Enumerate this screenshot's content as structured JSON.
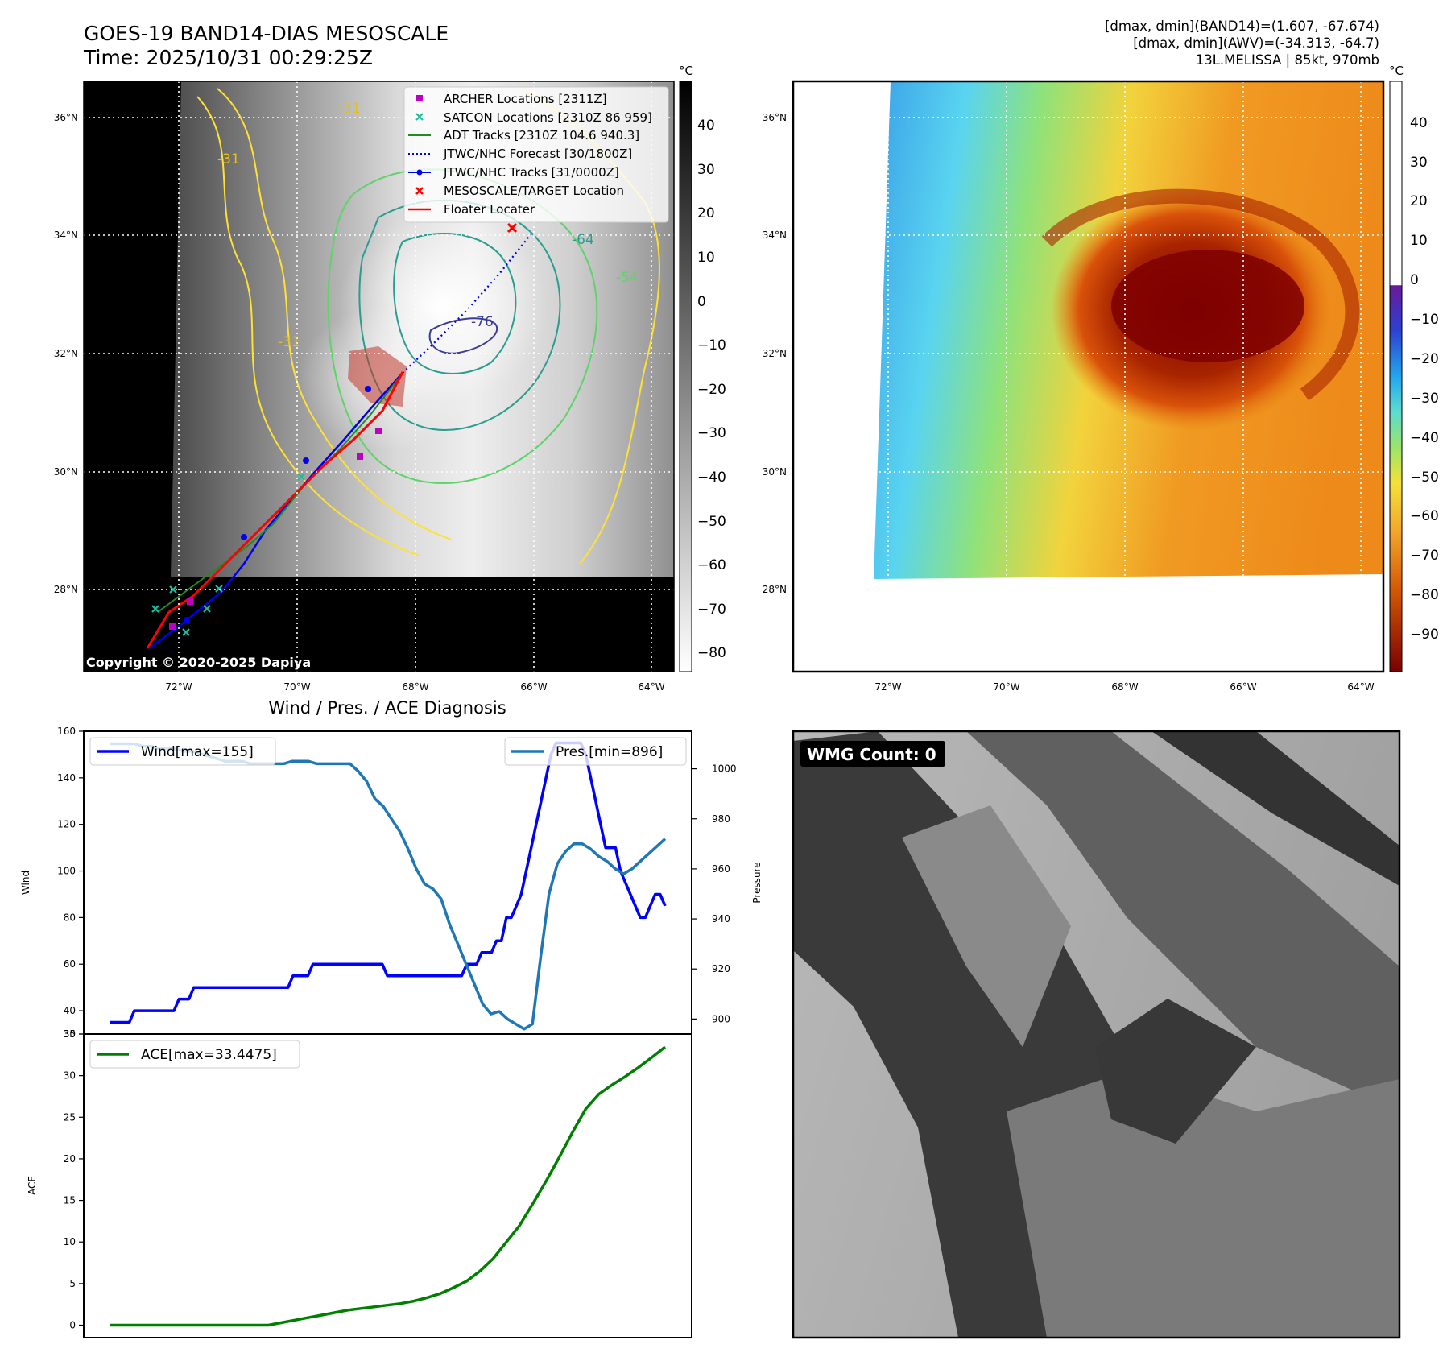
{
  "header": {
    "title_line1": "GOES-19 BAND14-DIAS MESOSCALE",
    "title_line2": "Time: 2025/10/31 00:29:25Z",
    "info_line1": "[dmax, dmin](BAND14)=(1.607, -67.674)",
    "info_line2": "[dmax, dmin](AWV)=(-34.313, -64.7)",
    "info_line3": "13L.MELISSA | 85kt, 970mb"
  },
  "map_panel": {
    "lat_labels": [
      "36°N",
      "34°N",
      "32°N",
      "30°N",
      "28°N"
    ],
    "lon_labels": [
      "72°W",
      "70°W",
      "68°W",
      "66°W",
      "64°W"
    ],
    "colorbar_unit": "°C",
    "colorbar_ticks": [
      "40",
      "30",
      "20",
      "10",
      "0",
      "−10",
      "−20",
      "−30",
      "−40",
      "−50",
      "−60",
      "−70",
      "−80"
    ],
    "copyright": "Copyright © 2020-2025 Dapiya",
    "contour_labels": [
      "-76",
      "-64",
      "-54",
      "-31",
      "-31",
      "-31"
    ],
    "legend": [
      {
        "label": "ARCHER Locations [2311Z]",
        "color": "#c000c0",
        "marker": "square"
      },
      {
        "label": "SATCON Locations [2310Z 86 959]",
        "color": "#1abc9c",
        "marker": "x"
      },
      {
        "label": "ADT Tracks [2310Z 104.6 940.3]",
        "color": "#228b22",
        "marker": "line"
      },
      {
        "label": "JTWC/NHC Forecast [30/1800Z]",
        "color": "#0000ee",
        "marker": "dotted"
      },
      {
        "label": "JTWC/NHC Tracks [31/0000Z]",
        "color": "#0000ee",
        "marker": "line-dot"
      },
      {
        "label": "MESOSCALE/TARGET Location",
        "color": "#ff0000",
        "marker": "x"
      },
      {
        "label": "Floater Locater",
        "color": "#ff0000",
        "marker": "line"
      }
    ]
  },
  "awv_panel": {
    "lat_labels": [
      "36°N",
      "34°N",
      "32°N",
      "30°N",
      "28°N"
    ],
    "lon_labels": [
      "72°W",
      "70°W",
      "68°W",
      "66°W",
      "64°W"
    ],
    "colorbar_unit": "°C",
    "colorbar_ticks": [
      "40",
      "30",
      "20",
      "10",
      "0",
      "−10",
      "−20",
      "−30",
      "−40",
      "−50",
      "−60",
      "−70",
      "−80",
      "−90"
    ]
  },
  "wmg_panel": {
    "label": "WMG Count: 0"
  },
  "chart_data": [
    {
      "type": "line",
      "title": "Wind / Pres. / ACE Diagnosis",
      "ylabel": "Wind",
      "ylabel_right": "Pressure",
      "ylim": [
        30,
        160
      ],
      "ylim_right": [
        894,
        1015
      ],
      "yticks": [
        "30",
        "40",
        "60",
        "80",
        "100",
        "120",
        "140",
        "160"
      ],
      "yticks_right": [
        "900",
        "920",
        "940",
        "960",
        "980",
        "1000"
      ],
      "series": [
        {
          "name": "Wind[max=155]",
          "color": "#0000ff",
          "axis": "left",
          "values": [
            35,
            35,
            35,
            35,
            35,
            40,
            40,
            40,
            40,
            40,
            40,
            40,
            40,
            40,
            45,
            45,
            45,
            50,
            50,
            50,
            50,
            50,
            50,
            50,
            50,
            50,
            50,
            50,
            50,
            50,
            50,
            50,
            50,
            50,
            50,
            50,
            50,
            55,
            55,
            55,
            55,
            60,
            60,
            60,
            60,
            60,
            60,
            60,
            60,
            60,
            60,
            60,
            60,
            60,
            60,
            60,
            55,
            55,
            55,
            55,
            55,
            55,
            55,
            55,
            55,
            55,
            55,
            55,
            55,
            55,
            55,
            55,
            60,
            60,
            60,
            65,
            65,
            65,
            70,
            70,
            80,
            80,
            85,
            90,
            100,
            110,
            120,
            130,
            140,
            150,
            155,
            155,
            155,
            155,
            155,
            155,
            150,
            140,
            130,
            120,
            110,
            110,
            110,
            100,
            95,
            90,
            85,
            80,
            80,
            85,
            90,
            90,
            85
          ]
        },
        {
          "name": "Pres.[min=896]",
          "color": "#1f77b4",
          "axis": "right",
          "values": [
            1010,
            1010,
            1010,
            1010,
            1009,
            1009,
            1008,
            1008,
            1008,
            1007,
            1007,
            1006,
            1005,
            1004,
            1003,
            1003,
            1003,
            1002,
            1002,
            1002,
            1002,
            1002,
            1003,
            1003,
            1003,
            1002,
            1002,
            1002,
            1002,
            1002,
            999,
            995,
            988,
            985,
            980,
            975,
            968,
            960,
            954,
            952,
            948,
            938,
            930,
            922,
            914,
            906,
            902,
            903,
            900,
            898,
            896,
            898,
            925,
            950,
            962,
            967,
            970,
            970,
            968,
            965,
            963,
            960,
            958,
            960,
            963,
            966,
            969,
            972
          ]
        }
      ]
    },
    {
      "type": "line",
      "ylabel": "ACE",
      "ylim": [
        -1.5,
        35
      ],
      "yticks": [
        "0",
        "5",
        "10",
        "15",
        "20",
        "25",
        "30",
        "35"
      ],
      "series": [
        {
          "name": "ACE[max=33.4475]",
          "color": "#008000",
          "values": [
            0,
            0,
            0,
            0,
            0,
            0,
            0,
            0,
            0,
            0,
            0,
            0,
            0,
            0.3,
            0.6,
            0.9,
            1.2,
            1.5,
            1.8,
            2.0,
            2.2,
            2.4,
            2.6,
            2.9,
            3.3,
            3.8,
            4.5,
            5.3,
            6.5,
            8.0,
            10.0,
            12.0,
            14.6,
            17.3,
            20.2,
            23.2,
            26.0,
            27.8,
            28.9,
            29.9,
            31.0,
            32.2,
            33.45
          ]
        }
      ]
    }
  ]
}
